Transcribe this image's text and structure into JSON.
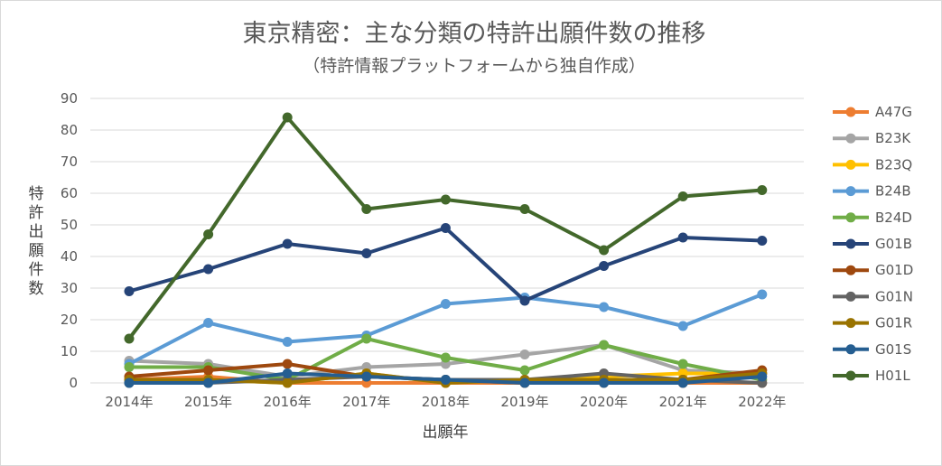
{
  "chart_data": {
    "type": "line",
    "title": "東京精密：主な分類の特許出願件数の推移",
    "subtitle": "（特許情報プラットフォームから独自作成）",
    "xlabel": "出願年",
    "ylabel": "特許出願件数",
    "ylim": [
      0,
      90
    ],
    "yticks": [
      "0",
      "10",
      "20",
      "30",
      "40",
      "50",
      "60",
      "70",
      "80",
      "90"
    ],
    "grid": true,
    "legend_position": "right",
    "categories": [
      "2014年",
      "2015年",
      "2016年",
      "2017年",
      "2018年",
      "2019年",
      "2020年",
      "2021年",
      "2022年"
    ],
    "series": [
      {
        "name": "A47G",
        "color": "#ED7D31",
        "values": [
          1,
          2,
          0,
          0,
          0,
          0,
          0,
          0,
          0
        ]
      },
      {
        "name": "B23K",
        "color": "#A5A5A5",
        "values": [
          7,
          6,
          2,
          5,
          6,
          9,
          12,
          4,
          3
        ]
      },
      {
        "name": "B23Q",
        "color": "#FFC000",
        "values": [
          1,
          1,
          0,
          3,
          0,
          1,
          2,
          3,
          3
        ]
      },
      {
        "name": "B24B",
        "color": "#5B9BD5",
        "values": [
          6,
          19,
          13,
          15,
          25,
          27,
          24,
          18,
          28
        ]
      },
      {
        "name": "B24D",
        "color": "#70AD47",
        "values": [
          5,
          5,
          1,
          14,
          8,
          4,
          12,
          6,
          1
        ]
      },
      {
        "name": "G01B",
        "color": "#264478",
        "values": [
          29,
          36,
          44,
          41,
          49,
          26,
          37,
          46,
          45
        ]
      },
      {
        "name": "G01D",
        "color": "#9E480E",
        "values": [
          2,
          4,
          6,
          2,
          1,
          0,
          1,
          1,
          4
        ]
      },
      {
        "name": "G01N",
        "color": "#636363",
        "values": [
          0,
          0,
          1,
          2,
          1,
          1,
          3,
          1,
          0
        ]
      },
      {
        "name": "G01R",
        "color": "#997300",
        "values": [
          1,
          1,
          0,
          3,
          0,
          1,
          1,
          1,
          3
        ]
      },
      {
        "name": "G01S",
        "color": "#255E91",
        "values": [
          0,
          0,
          3,
          2,
          1,
          0,
          0,
          0,
          2
        ]
      },
      {
        "name": "H01L",
        "color": "#43682B",
        "values": [
          14,
          47,
          84,
          55,
          58,
          55,
          42,
          59,
          61
        ]
      }
    ]
  }
}
